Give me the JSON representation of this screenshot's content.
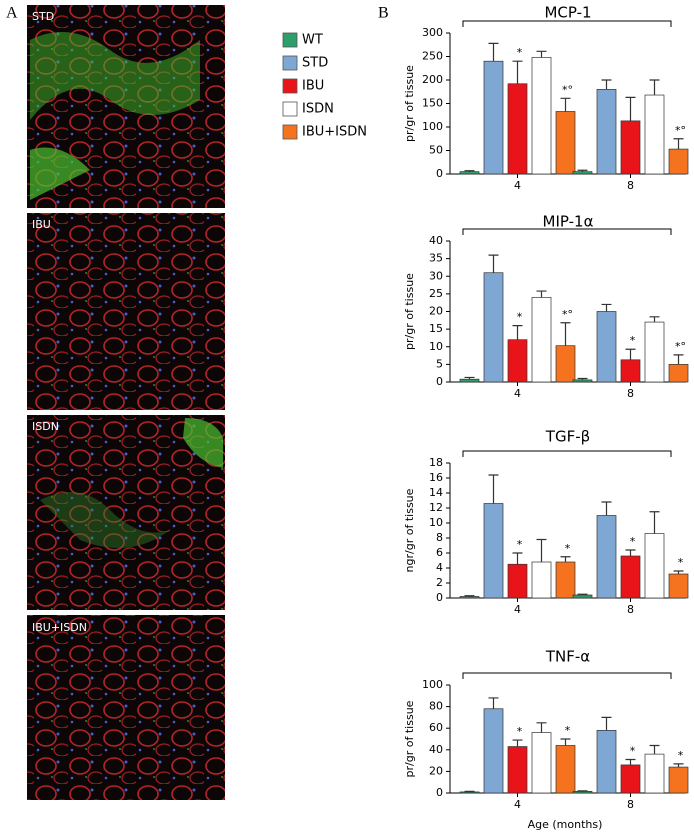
{
  "panel_labels": [
    "A",
    "B"
  ],
  "image_labels": [
    "STD",
    "IBU",
    "ISDN",
    "IBU+ISDN"
  ],
  "chart_data": [
    {
      "type": "bar",
      "title": "MCP-1",
      "ylabel": "pr/gr of tissue",
      "categories": [
        "4",
        "8"
      ],
      "ylim": [
        0,
        300
      ],
      "yticks": [
        0,
        50,
        100,
        150,
        200,
        250,
        300
      ],
      "series": [
        {
          "name": "WT",
          "color": "#2e9e6a",
          "values": [
            5,
            5
          ],
          "errors": [
            2,
            3
          ],
          "annotations": [
            null,
            null
          ]
        },
        {
          "name": "STD",
          "color": "#7fa7d4",
          "values": [
            240,
            180
          ],
          "errors": [
            38,
            20
          ],
          "annotations": [
            null,
            null
          ]
        },
        {
          "name": "IBU",
          "color": "#e8141a",
          "values": [
            192,
            113
          ],
          "errors": [
            48,
            50
          ],
          "annotations": [
            "*",
            null
          ]
        },
        {
          "name": "ISDN",
          "color": "#ffffff",
          "values": [
            248,
            168
          ],
          "errors": [
            13,
            32
          ],
          "annotations": [
            null,
            null
          ]
        },
        {
          "name": "IBU+ISDN",
          "color": "#f5731e",
          "values": [
            133,
            53
          ],
          "errors": [
            28,
            22
          ],
          "annotations": [
            "*°",
            "*°"
          ]
        }
      ]
    },
    {
      "type": "bar",
      "title": "MIP-1α",
      "ylabel": "pr/gr of tissue",
      "categories": [
        "4",
        "8"
      ],
      "ylim": [
        0,
        40
      ],
      "yticks": [
        0,
        5,
        10,
        15,
        20,
        25,
        30,
        35,
        40
      ],
      "series": [
        {
          "color": "#2e9e6a",
          "values": [
            0.8,
            0.6
          ],
          "errors": [
            0.5,
            0.4
          ],
          "annotations": [
            null,
            null
          ]
        },
        {
          "color": "#7fa7d4",
          "values": [
            31,
            20
          ],
          "errors": [
            5,
            2
          ],
          "annotations": [
            null,
            null
          ]
        },
        {
          "color": "#e8141a",
          "values": [
            12,
            6.3
          ],
          "errors": [
            4,
            3
          ],
          "annotations": [
            "*",
            "*"
          ]
        },
        {
          "color": "#ffffff",
          "values": [
            24,
            17
          ],
          "errors": [
            1.8,
            1.5
          ],
          "annotations": [
            null,
            null
          ]
        },
        {
          "color": "#f5731e",
          "values": [
            10.3,
            5
          ],
          "errors": [
            6.5,
            2.7
          ],
          "annotations": [
            "*°",
            "*°"
          ]
        }
      ]
    },
    {
      "type": "bar",
      "title": "TGF-β",
      "ylabel": "ngr/gr of tissue",
      "categories": [
        "4",
        "8"
      ],
      "ylim": [
        0,
        18
      ],
      "yticks": [
        0,
        2,
        4,
        6,
        8,
        10,
        12,
        14,
        16,
        18
      ],
      "series": [
        {
          "color": "#2e9e6a",
          "values": [
            0.2,
            0.4
          ],
          "errors": [
            0.1,
            0.1
          ],
          "annotations": [
            null,
            null
          ]
        },
        {
          "color": "#7fa7d4",
          "values": [
            12.6,
            11
          ],
          "errors": [
            3.8,
            1.8
          ],
          "annotations": [
            null,
            null
          ]
        },
        {
          "color": "#e8141a",
          "values": [
            4.5,
            5.6
          ],
          "errors": [
            1.5,
            0.8
          ],
          "annotations": [
            "*",
            "*"
          ]
        },
        {
          "color": "#ffffff",
          "values": [
            4.8,
            8.6
          ],
          "errors": [
            3,
            2.9
          ],
          "annotations": [
            null,
            null
          ]
        },
        {
          "color": "#f5731e",
          "values": [
            4.8,
            3.2
          ],
          "errors": [
            0.7,
            0.4
          ],
          "annotations": [
            "*",
            "*"
          ]
        }
      ]
    },
    {
      "type": "bar",
      "title": "TNF-α",
      "ylabel": "pr/gr of tissue",
      "xlabel": "Age (months)",
      "categories": [
        "4",
        "8"
      ],
      "ylim": [
        0,
        100
      ],
      "yticks": [
        0,
        20,
        40,
        60,
        80,
        100
      ],
      "series": [
        {
          "color": "#2e9e6a",
          "values": [
            1,
            1.5
          ],
          "errors": [
            0.5,
            0.5
          ],
          "annotations": [
            null,
            null
          ]
        },
        {
          "color": "#7fa7d4",
          "values": [
            78,
            58
          ],
          "errors": [
            10,
            12
          ],
          "annotations": [
            null,
            null
          ]
        },
        {
          "color": "#e8141a",
          "values": [
            43,
            26
          ],
          "errors": [
            6,
            5
          ],
          "annotations": [
            "*",
            "*"
          ]
        },
        {
          "color": "#ffffff",
          "values": [
            56,
            36
          ],
          "errors": [
            9,
            8
          ],
          "annotations": [
            null,
            null
          ]
        },
        {
          "color": "#f5731e",
          "values": [
            44,
            24
          ],
          "errors": [
            6,
            3
          ],
          "annotations": [
            "*",
            "*"
          ]
        }
      ]
    }
  ]
}
